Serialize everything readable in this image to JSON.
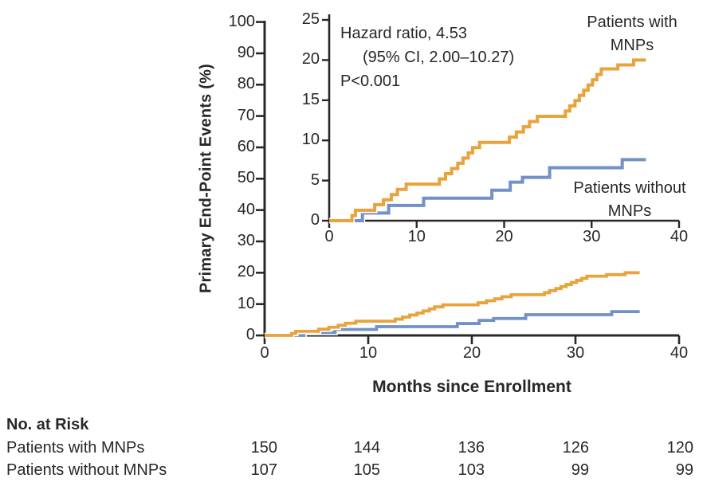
{
  "chart_data": [
    {
      "type": "line",
      "id": "main",
      "title": "",
      "xlabel": "Months since Enrollment",
      "ylabel": "Primary End-Point Events (%)",
      "xlim": [
        0,
        40
      ],
      "ylim": [
        0,
        100
      ],
      "xticks": [
        0,
        10,
        20,
        30,
        40
      ],
      "yticks": [
        0,
        10,
        20,
        30,
        40,
        50,
        60,
        70,
        80,
        90,
        100
      ],
      "step": true,
      "grid": false,
      "series": [
        {
          "name": "Patients without MNPs",
          "color": "#7191C7",
          "points": [
            [
              0,
              0
            ],
            [
              3.8,
              0.95
            ],
            [
              6.8,
              1.9
            ],
            [
              10.8,
              2.8
            ],
            [
              18.6,
              3.8
            ],
            [
              20.7,
              4.8
            ],
            [
              22.1,
              5.4
            ],
            [
              25.2,
              6.6
            ],
            [
              33.5,
              7.6
            ],
            [
              36.2,
              7.6
            ]
          ]
        },
        {
          "name": "Patients with MNPs",
          "color": "#E8A33C",
          "points": [
            [
              0,
              0
            ],
            [
              2.6,
              0.65
            ],
            [
              3.0,
              1.3
            ],
            [
              5.2,
              2.0
            ],
            [
              6.2,
              2.6
            ],
            [
              7.1,
              3.25
            ],
            [
              7.8,
              3.9
            ],
            [
              8.8,
              4.55
            ],
            [
              12.6,
              5.2
            ],
            [
              13.3,
              5.85
            ],
            [
              14.0,
              6.5
            ],
            [
              14.7,
              7.15
            ],
            [
              15.3,
              7.8
            ],
            [
              15.9,
              8.45
            ],
            [
              16.4,
              9.1
            ],
            [
              17.2,
              9.75
            ],
            [
              20.6,
              10.4
            ],
            [
              21.4,
              11.05
            ],
            [
              22.2,
              11.7
            ],
            [
              22.9,
              12.35
            ],
            [
              23.8,
              13.0
            ],
            [
              27.0,
              13.65
            ],
            [
              27.5,
              14.3
            ],
            [
              28.1,
              14.95
            ],
            [
              28.6,
              15.6
            ],
            [
              29.1,
              16.25
            ],
            [
              29.6,
              16.9
            ],
            [
              30.1,
              17.55
            ],
            [
              30.6,
              18.2
            ],
            [
              31.1,
              18.9
            ],
            [
              33.0,
              19.4
            ],
            [
              34.8,
              20.0
            ],
            [
              36.2,
              20.0
            ]
          ]
        }
      ]
    },
    {
      "type": "line",
      "id": "inset",
      "title": "",
      "xlabel": "",
      "ylabel": "",
      "xlim": [
        0,
        40
      ],
      "ylim": [
        0,
        25
      ],
      "xticks": [
        0,
        10,
        20,
        30,
        40
      ],
      "yticks": [
        0,
        5,
        10,
        15,
        20,
        25
      ],
      "step": true,
      "grid": false,
      "annotation": {
        "line1": "Hazard ratio, 4.53",
        "line2": "(95% CI, 2.00–10.27)",
        "line3": "P<0.001"
      },
      "series": [
        {
          "name": "Patients without MNPs",
          "color": "#7191C7",
          "points": [
            [
              0,
              0
            ],
            [
              3.8,
              0.95
            ],
            [
              6.8,
              1.9
            ],
            [
              10.8,
              2.8
            ],
            [
              18.6,
              3.8
            ],
            [
              20.7,
              4.8
            ],
            [
              22.1,
              5.4
            ],
            [
              25.2,
              6.6
            ],
            [
              33.5,
              7.6
            ],
            [
              36.2,
              7.6
            ]
          ]
        },
        {
          "name": "Patients with MNPs",
          "color": "#E8A33C",
          "points": [
            [
              0,
              0
            ],
            [
              2.6,
              0.65
            ],
            [
              3.0,
              1.3
            ],
            [
              5.2,
              2.0
            ],
            [
              6.2,
              2.6
            ],
            [
              7.1,
              3.25
            ],
            [
              7.8,
              3.9
            ],
            [
              8.8,
              4.55
            ],
            [
              12.6,
              5.2
            ],
            [
              13.3,
              5.85
            ],
            [
              14.0,
              6.5
            ],
            [
              14.7,
              7.15
            ],
            [
              15.3,
              7.8
            ],
            [
              15.9,
              8.45
            ],
            [
              16.4,
              9.1
            ],
            [
              17.2,
              9.75
            ],
            [
              20.6,
              10.4
            ],
            [
              21.4,
              11.05
            ],
            [
              22.2,
              11.7
            ],
            [
              22.9,
              12.35
            ],
            [
              23.8,
              13.0
            ],
            [
              27.0,
              13.65
            ],
            [
              27.5,
              14.3
            ],
            [
              28.1,
              14.95
            ],
            [
              28.6,
              15.6
            ],
            [
              29.1,
              16.25
            ],
            [
              29.6,
              16.9
            ],
            [
              30.1,
              17.55
            ],
            [
              30.6,
              18.2
            ],
            [
              31.1,
              18.9
            ],
            [
              33.0,
              19.4
            ],
            [
              34.8,
              20.0
            ],
            [
              36.2,
              20.0
            ]
          ]
        }
      ]
    }
  ],
  "labels": {
    "with_mnps_line1": "Patients with",
    "with_mnps_line2": "MNPs",
    "without_mnps_line1": "Patients without",
    "without_mnps_line2": "MNPs"
  },
  "risk_table": {
    "title": "No. at Risk",
    "rows": [
      {
        "label": "Patients with MNPs",
        "values": [
          "150",
          "144",
          "136",
          "126",
          "120"
        ]
      },
      {
        "label": "Patients without MNPs",
        "values": [
          "107",
          "105",
          "103",
          "99",
          "99"
        ]
      }
    ]
  },
  "colors": {
    "with_mnps": "#E8A33C",
    "without_mnps": "#7191C7",
    "axis": "#282828"
  }
}
